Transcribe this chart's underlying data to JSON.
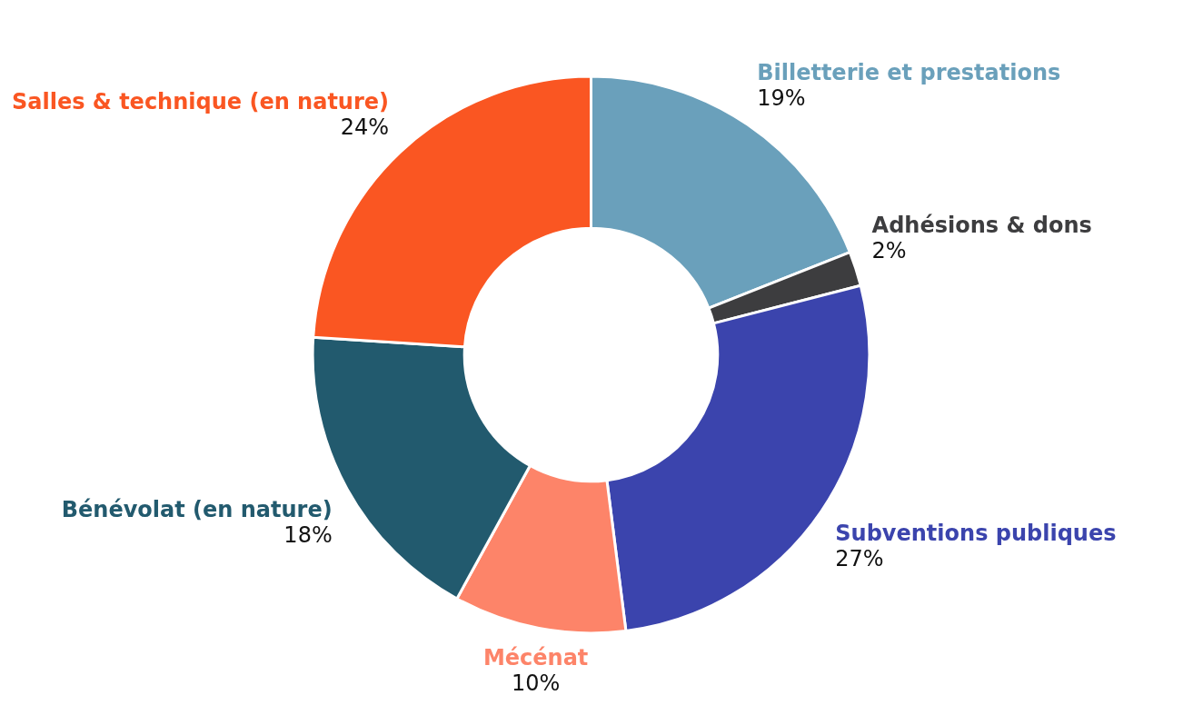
{
  "chart_data": {
    "type": "donut",
    "categories": [
      "Billetterie et prestations",
      "Adhésions & dons",
      "Subventions publiques",
      "Mécénat",
      "Bénévolat (en nature)",
      "Salles & technique (en nature)"
    ],
    "values": [
      19,
      2,
      27,
      10,
      18,
      24
    ],
    "colors": [
      "#6aa0bb",
      "#3d3d3f",
      "#3b44ad",
      "#fd8469",
      "#225a6e",
      "#fa5622"
    ],
    "value_labels": [
      "19%",
      "2%",
      "27%",
      "10%",
      "18%",
      "24%"
    ]
  }
}
